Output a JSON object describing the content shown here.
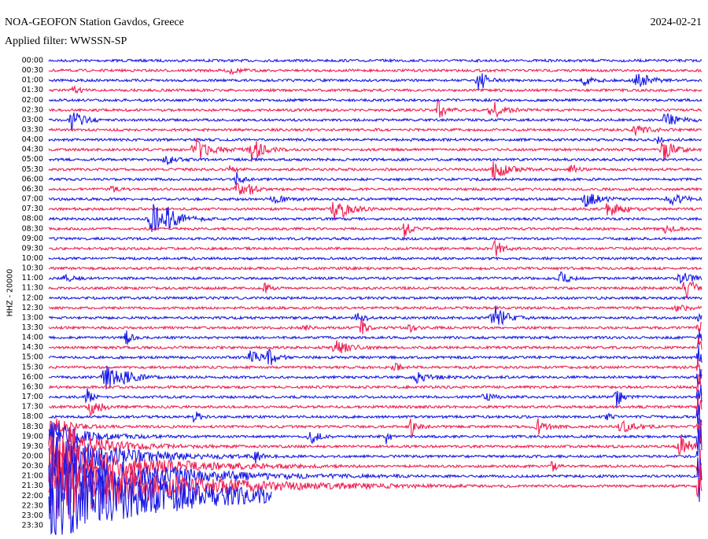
{
  "header": {
    "title": "NOA-GEOFON Station Gavdos, Greece",
    "date": "2024-02-21",
    "filter": "Applied filter: WWSSN-SP"
  },
  "channel": "HHZ - 20000",
  "rows": [
    "00:00",
    "00:30",
    "01:00",
    "01:30",
    "02:00",
    "02:30",
    "03:00",
    "03:30",
    "04:00",
    "04:30",
    "05:00",
    "05:30",
    "06:00",
    "06:30",
    "07:00",
    "07:30",
    "08:00",
    "08:30",
    "09:00",
    "09:30",
    "10:00",
    "10:30",
    "11:00",
    "11:30",
    "12:00",
    "12:30",
    "13:00",
    "13:30",
    "14:00",
    "14:30",
    "15:00",
    "15:30",
    "16:00",
    "16:30",
    "17:00",
    "17:30",
    "18:00",
    "18:30",
    "19:00",
    "19:30",
    "20:00",
    "20:30",
    "21:00",
    "21:30",
    "22:00",
    "22:30",
    "23:00",
    "23:30"
  ]
}
